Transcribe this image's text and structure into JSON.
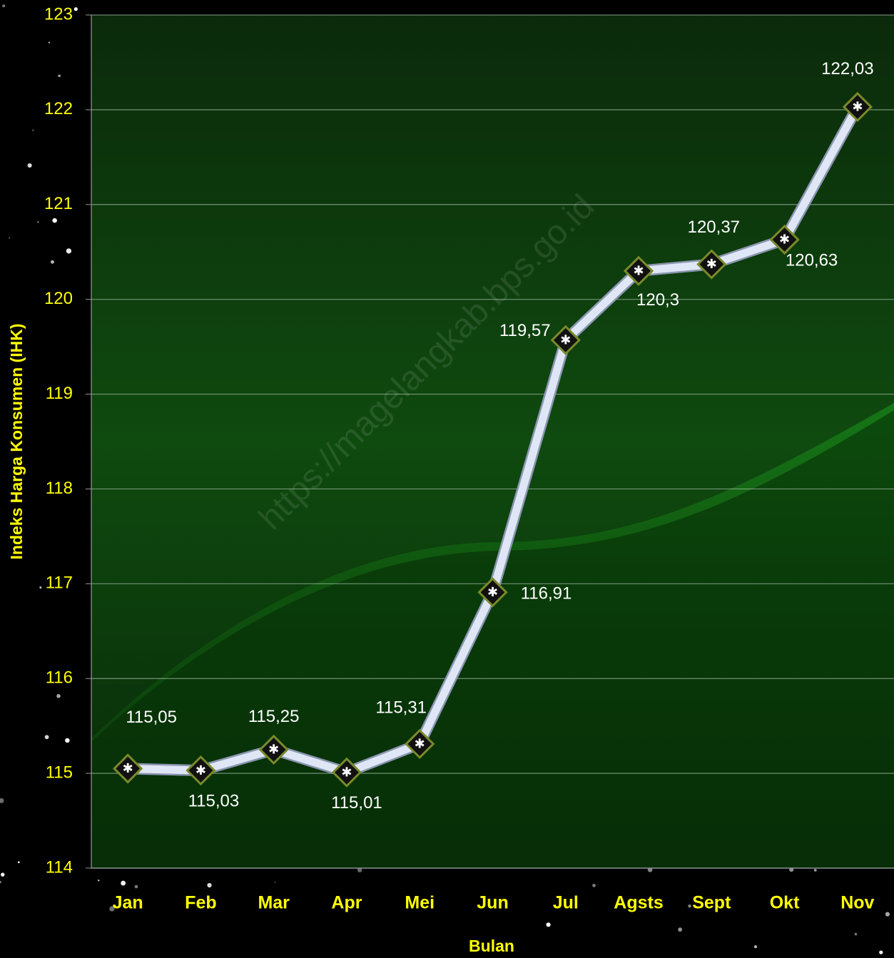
{
  "chart_data": {
    "type": "line",
    "categories": [
      "Jan",
      "Feb",
      "Mar",
      "Apr",
      "Mei",
      "Jun",
      "Jul",
      "Agsts",
      "Sept",
      "Okt",
      "Nov"
    ],
    "values": [
      115.05,
      115.03,
      115.25,
      115.01,
      115.31,
      116.91,
      119.57,
      120.3,
      120.37,
      120.63,
      122.03
    ],
    "value_labels": [
      "115,05",
      "115,03",
      "115,25",
      "115,01",
      "115,31",
      "116,91",
      "119,57",
      "120,3",
      "120,37",
      "120,63",
      "122,03"
    ],
    "color": "#dfe6f5",
    "ylim": [
      114,
      123
    ],
    "yticks": [
      114,
      115,
      116,
      117,
      118,
      119,
      120,
      121,
      122,
      123
    ],
    "grid": true,
    "x_label": "Bulan",
    "y_label": "Indeks Harga Konsumen (IHK)",
    "watermark": "https://magelangkab.bps.go.id"
  }
}
